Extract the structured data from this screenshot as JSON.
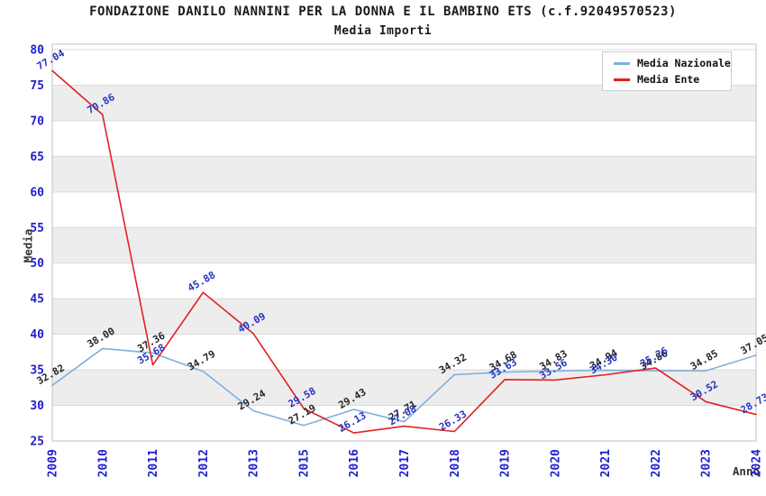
{
  "header": {
    "title": "FONDAZIONE DANILO NANNINI PER LA DONNA E IL BAMBINO ETS (c.f.92049570523)",
    "subtitle": "Media Importi"
  },
  "legend": {
    "items": [
      {
        "label": "Media Nazionale"
      },
      {
        "label": "Media Ente"
      }
    ]
  },
  "colors": {
    "tick_label": "#2020CC",
    "band": "#EDEDED",
    "gridline": "#DADADA",
    "plot_border": "#C0C0C0",
    "axis_title": "#333333"
  },
  "chart_data": {
    "type": "line",
    "title": "FONDAZIONE DANILO NANNINI PER LA DONNA E IL BAMBINO ETS (c.f.92049570523)",
    "subtitle": "Media Importi",
    "xlabel": "Anno",
    "ylabel": "Media",
    "categories": [
      "2009",
      "2010",
      "2011",
      "2012",
      "2013",
      "2015",
      "2016",
      "2017",
      "2018",
      "2019",
      "2020",
      "2021",
      "2022",
      "2023",
      "2024"
    ],
    "series": [
      {
        "name": "Media Nazionale",
        "color": "#7EAFE0",
        "label_color": "#262626",
        "values": [
          32.82,
          38.0,
          37.36,
          34.79,
          29.24,
          27.19,
          29.43,
          27.71,
          34.32,
          34.68,
          34.83,
          34.94,
          34.86,
          34.85,
          37.05
        ]
      },
      {
        "name": "Media Ente",
        "color": "#E02222",
        "label_color": "#2633C0",
        "values": [
          77.04,
          70.86,
          35.68,
          45.88,
          40.09,
          29.58,
          26.13,
          27.08,
          26.33,
          33.63,
          33.56,
          34.3,
          35.26,
          30.52,
          28.73
        ]
      }
    ],
    "ylim": [
      25,
      80
    ],
    "ytick_step": 5,
    "grid": "horizontal-bands-alternating",
    "legend_position": "top-right",
    "point_labels": "values shown rotated 30deg above each point, 2 decimals"
  }
}
